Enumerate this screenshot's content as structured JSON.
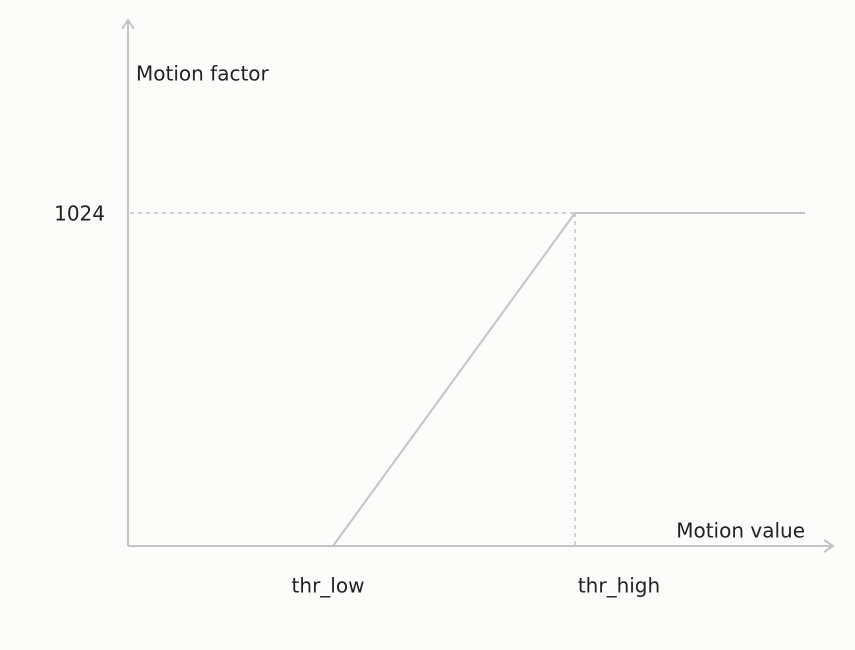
{
  "diagram": {
    "y_axis_label": "Motion factor",
    "x_axis_label": "Motion value",
    "y_level_label": "1024",
    "x_threshold_labels": [
      "thr_low",
      "thr_high"
    ]
  }
}
